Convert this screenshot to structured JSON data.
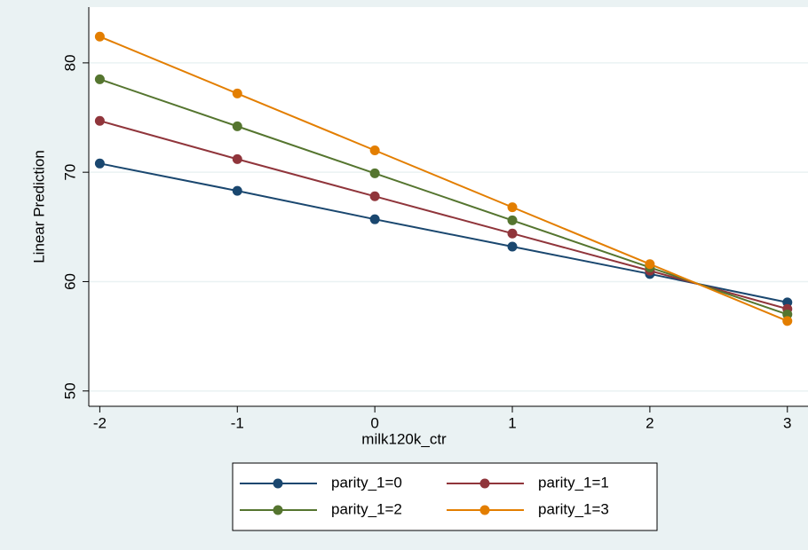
{
  "chart_data": {
    "type": "line",
    "x_label": "milk120k_ctr",
    "y_label": "Linear Prediction",
    "x": [
      -2,
      -1,
      0,
      1,
      2,
      3
    ],
    "series": [
      {
        "name": "parity_1=0",
        "color": "#1a476f",
        "values": [
          70.8,
          68.3,
          65.7,
          63.2,
          60.7,
          58.1
        ]
      },
      {
        "name": "parity_1=1",
        "color": "#90353b",
        "values": [
          74.7,
          71.2,
          67.8,
          64.4,
          61.0,
          57.5
        ]
      },
      {
        "name": "parity_1=2",
        "color": "#55752f",
        "values": [
          78.5,
          74.2,
          69.9,
          65.6,
          61.3,
          57.0
        ]
      },
      {
        "name": "parity_1=3",
        "color": "#e37e00",
        "values": [
          82.4,
          77.2,
          72.0,
          66.8,
          61.6,
          56.4
        ]
      }
    ],
    "xlim": [
      -2.08,
      3.15
    ],
    "xticks": [
      -2,
      -1,
      0,
      1,
      2,
      3
    ],
    "ylim": [
      48.6,
      85.1
    ],
    "yticks": [
      50,
      60,
      70,
      80
    ],
    "grid": true,
    "legend": "bottom"
  }
}
